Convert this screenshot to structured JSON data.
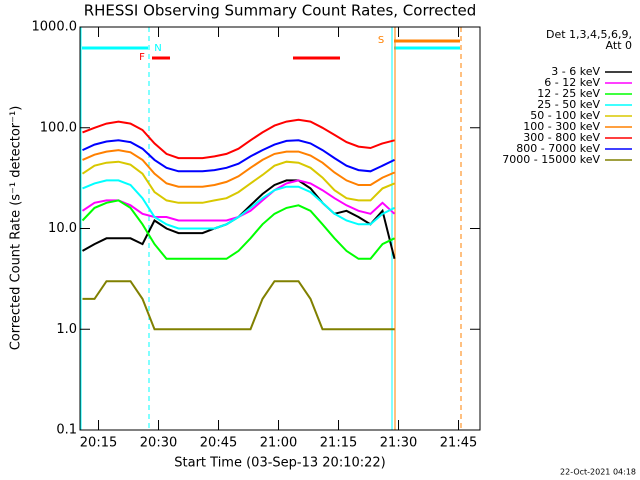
{
  "chart_data": {
    "type": "line",
    "title": "RHESSI Observing Summary Count Rates, Corrected",
    "x_label": "Start Time (03-Sep-13 20:10:22)",
    "y_label": "Corrected Count Rate (s⁻¹ detector⁻¹)",
    "legend_title": [
      "Det 1,3,4,5,6,9,",
      "Att 0"
    ],
    "footer": "22-Oct-2021 04:18",
    "annotations": [
      "N",
      "F",
      "S"
    ],
    "log_y": true,
    "legend_position": "right",
    "xlim": [
      10.37,
      110.37
    ],
    "xticks": [
      {
        "value": 15,
        "label": "20:15"
      },
      {
        "value": 30,
        "label": "20:30"
      },
      {
        "value": 45,
        "label": "20:45"
      },
      {
        "value": 60,
        "label": "21:00"
      },
      {
        "value": 75,
        "label": "21:15"
      },
      {
        "value": 90,
        "label": "21:30"
      },
      {
        "value": 105,
        "label": "21:45"
      }
    ],
    "ylim": [
      0.1,
      1000
    ],
    "yticks": [
      0.1,
      {
        "value": 1,
        "label": "1.0"
      },
      {
        "value": 10,
        "label": "10.0"
      },
      {
        "value": 100,
        "label": "100.0"
      },
      {
        "value": 1000,
        "label": "1000.0"
      }
    ],
    "x": [
      11,
      14,
      17,
      20,
      23,
      26,
      29,
      32,
      35,
      38,
      41,
      44,
      47,
      50,
      53,
      56,
      59,
      62,
      65,
      68,
      71,
      74,
      77,
      80,
      83,
      86,
      89
    ],
    "series": [
      {
        "name": "3 - 6 keV",
        "color": "#000000",
        "values": [
          6,
          7,
          8,
          8,
          8,
          7,
          12,
          10,
          9,
          9,
          9,
          10,
          11,
          13,
          17,
          22,
          27,
          30,
          30,
          25,
          18,
          14,
          15,
          13,
          11,
          15,
          5
        ]
      },
      {
        "name": "6 - 12 keV",
        "color": "#ff00ff",
        "values": [
          15,
          18,
          19,
          19,
          17,
          14,
          13,
          13,
          12,
          12,
          12,
          12,
          12,
          13,
          15,
          19,
          24,
          28,
          30,
          28,
          24,
          20,
          17,
          15,
          14,
          18,
          14
        ]
      },
      {
        "name": "12 - 25 keV",
        "color": "#00ff00",
        "values": [
          12,
          16,
          18,
          19,
          16,
          11,
          7,
          5,
          5,
          5,
          5,
          5,
          5,
          6,
          8,
          11,
          14,
          16,
          17,
          15,
          11,
          8,
          6,
          5,
          5,
          7,
          8
        ]
      },
      {
        "name": "25 - 50 keV",
        "color": "#00ffff",
        "values": [
          25,
          28,
          30,
          30,
          27,
          20,
          13,
          11,
          10,
          10,
          10,
          10,
          11,
          13,
          16,
          20,
          24,
          26,
          26,
          23,
          18,
          14,
          12,
          11,
          11,
          14,
          16
        ]
      },
      {
        "name": "50 - 100 keV",
        "color": "#d8c800",
        "values": [
          35,
          42,
          45,
          46,
          43,
          35,
          23,
          19,
          18,
          18,
          18,
          19,
          20,
          23,
          28,
          34,
          42,
          46,
          45,
          40,
          32,
          24,
          20,
          19,
          19,
          25,
          28
        ]
      },
      {
        "name": "100 - 300 keV",
        "color": "#ff8000",
        "values": [
          48,
          54,
          58,
          60,
          57,
          48,
          35,
          28,
          26,
          26,
          26,
          27,
          29,
          33,
          40,
          48,
          55,
          58,
          58,
          53,
          45,
          36,
          30,
          27,
          27,
          32,
          36
        ]
      },
      {
        "name": "300 - 800 keV",
        "color": "#ff0000",
        "values": [
          90,
          100,
          110,
          115,
          110,
          95,
          70,
          55,
          50,
          50,
          50,
          52,
          55,
          62,
          75,
          90,
          105,
          115,
          120,
          115,
          100,
          85,
          72,
          65,
          63,
          70,
          75
        ]
      },
      {
        "name": "800 - 7000 keV",
        "color": "#0000ff",
        "values": [
          60,
          68,
          73,
          75,
          72,
          62,
          48,
          40,
          37,
          37,
          37,
          38,
          40,
          44,
          52,
          60,
          68,
          74,
          75,
          70,
          60,
          50,
          42,
          38,
          37,
          42,
          48
        ]
      },
      {
        "name": "7000 - 15000 keV",
        "color": "#808000",
        "values": [
          2,
          2,
          3,
          3,
          3,
          2,
          1,
          1,
          1,
          1,
          1,
          1,
          1,
          1,
          1,
          2,
          3,
          3,
          3,
          2,
          1,
          1,
          1,
          1,
          1,
          1,
          1
        ]
      }
    ]
  }
}
